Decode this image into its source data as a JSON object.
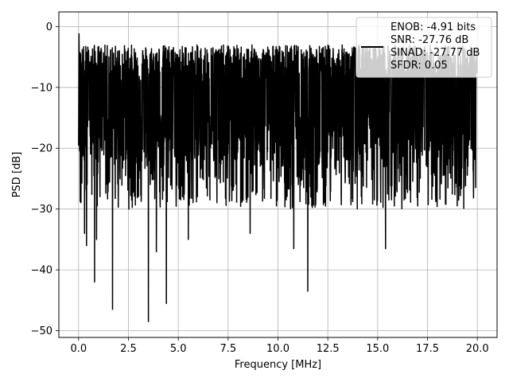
{
  "chart_data": {
    "type": "line",
    "title": "",
    "xlabel": "Frequency [MHz]",
    "ylabel": "PSD [dB]",
    "xlim": [
      -0.99,
      20.99
    ],
    "ylim": [
      -51.1,
      2.4
    ],
    "x_ticks": [
      0.0,
      2.5,
      5.0,
      7.5,
      10.0,
      12.5,
      15.0,
      17.5,
      20.0
    ],
    "x_tick_labels": [
      "0.0",
      "2.5",
      "5.0",
      "7.5",
      "10.0",
      "12.5",
      "15.0",
      "17.5",
      "20.0"
    ],
    "y_ticks": [
      0,
      -10,
      -20,
      -30,
      -40,
      -50
    ],
    "y_tick_labels": [
      "0",
      "−10",
      "−20",
      "−30",
      "−40",
      "−50"
    ],
    "grid": true,
    "legend_position": "top-right",
    "series": [
      {
        "color": "#000000",
        "trace_description": "noise-like PSD spanning 0 to 20 MHz, mostly between -25 and -3 dB",
        "x_start": 0.0,
        "x_end": 20.0,
        "baseline_low": -18,
        "baseline_high": -6,
        "peaks": [
          {
            "x": 0.02,
            "y": -1.2
          },
          {
            "x": 0.1,
            "y": -4.5
          }
        ],
        "deep_nulls": [
          {
            "x": 0.3,
            "y": -34
          },
          {
            "x": 0.4,
            "y": -36
          },
          {
            "x": 0.8,
            "y": -42
          },
          {
            "x": 0.9,
            "y": -35
          },
          {
            "x": 1.7,
            "y": -46.5
          },
          {
            "x": 3.5,
            "y": -48.5
          },
          {
            "x": 3.9,
            "y": -37
          },
          {
            "x": 4.4,
            "y": -45.5
          },
          {
            "x": 5.5,
            "y": -35
          },
          {
            "x": 8.6,
            "y": -34
          },
          {
            "x": 11.5,
            "y": -43.5
          },
          {
            "x": 15.4,
            "y": -36.5
          },
          {
            "x": 10.8,
            "y": -36.5
          }
        ]
      }
    ],
    "legend_lines": [
      "ENOB: -4.91 bits",
      "SNR: -27.76 dB",
      "SINAD: -27.77 dB",
      "SFDR: 0.05"
    ]
  }
}
